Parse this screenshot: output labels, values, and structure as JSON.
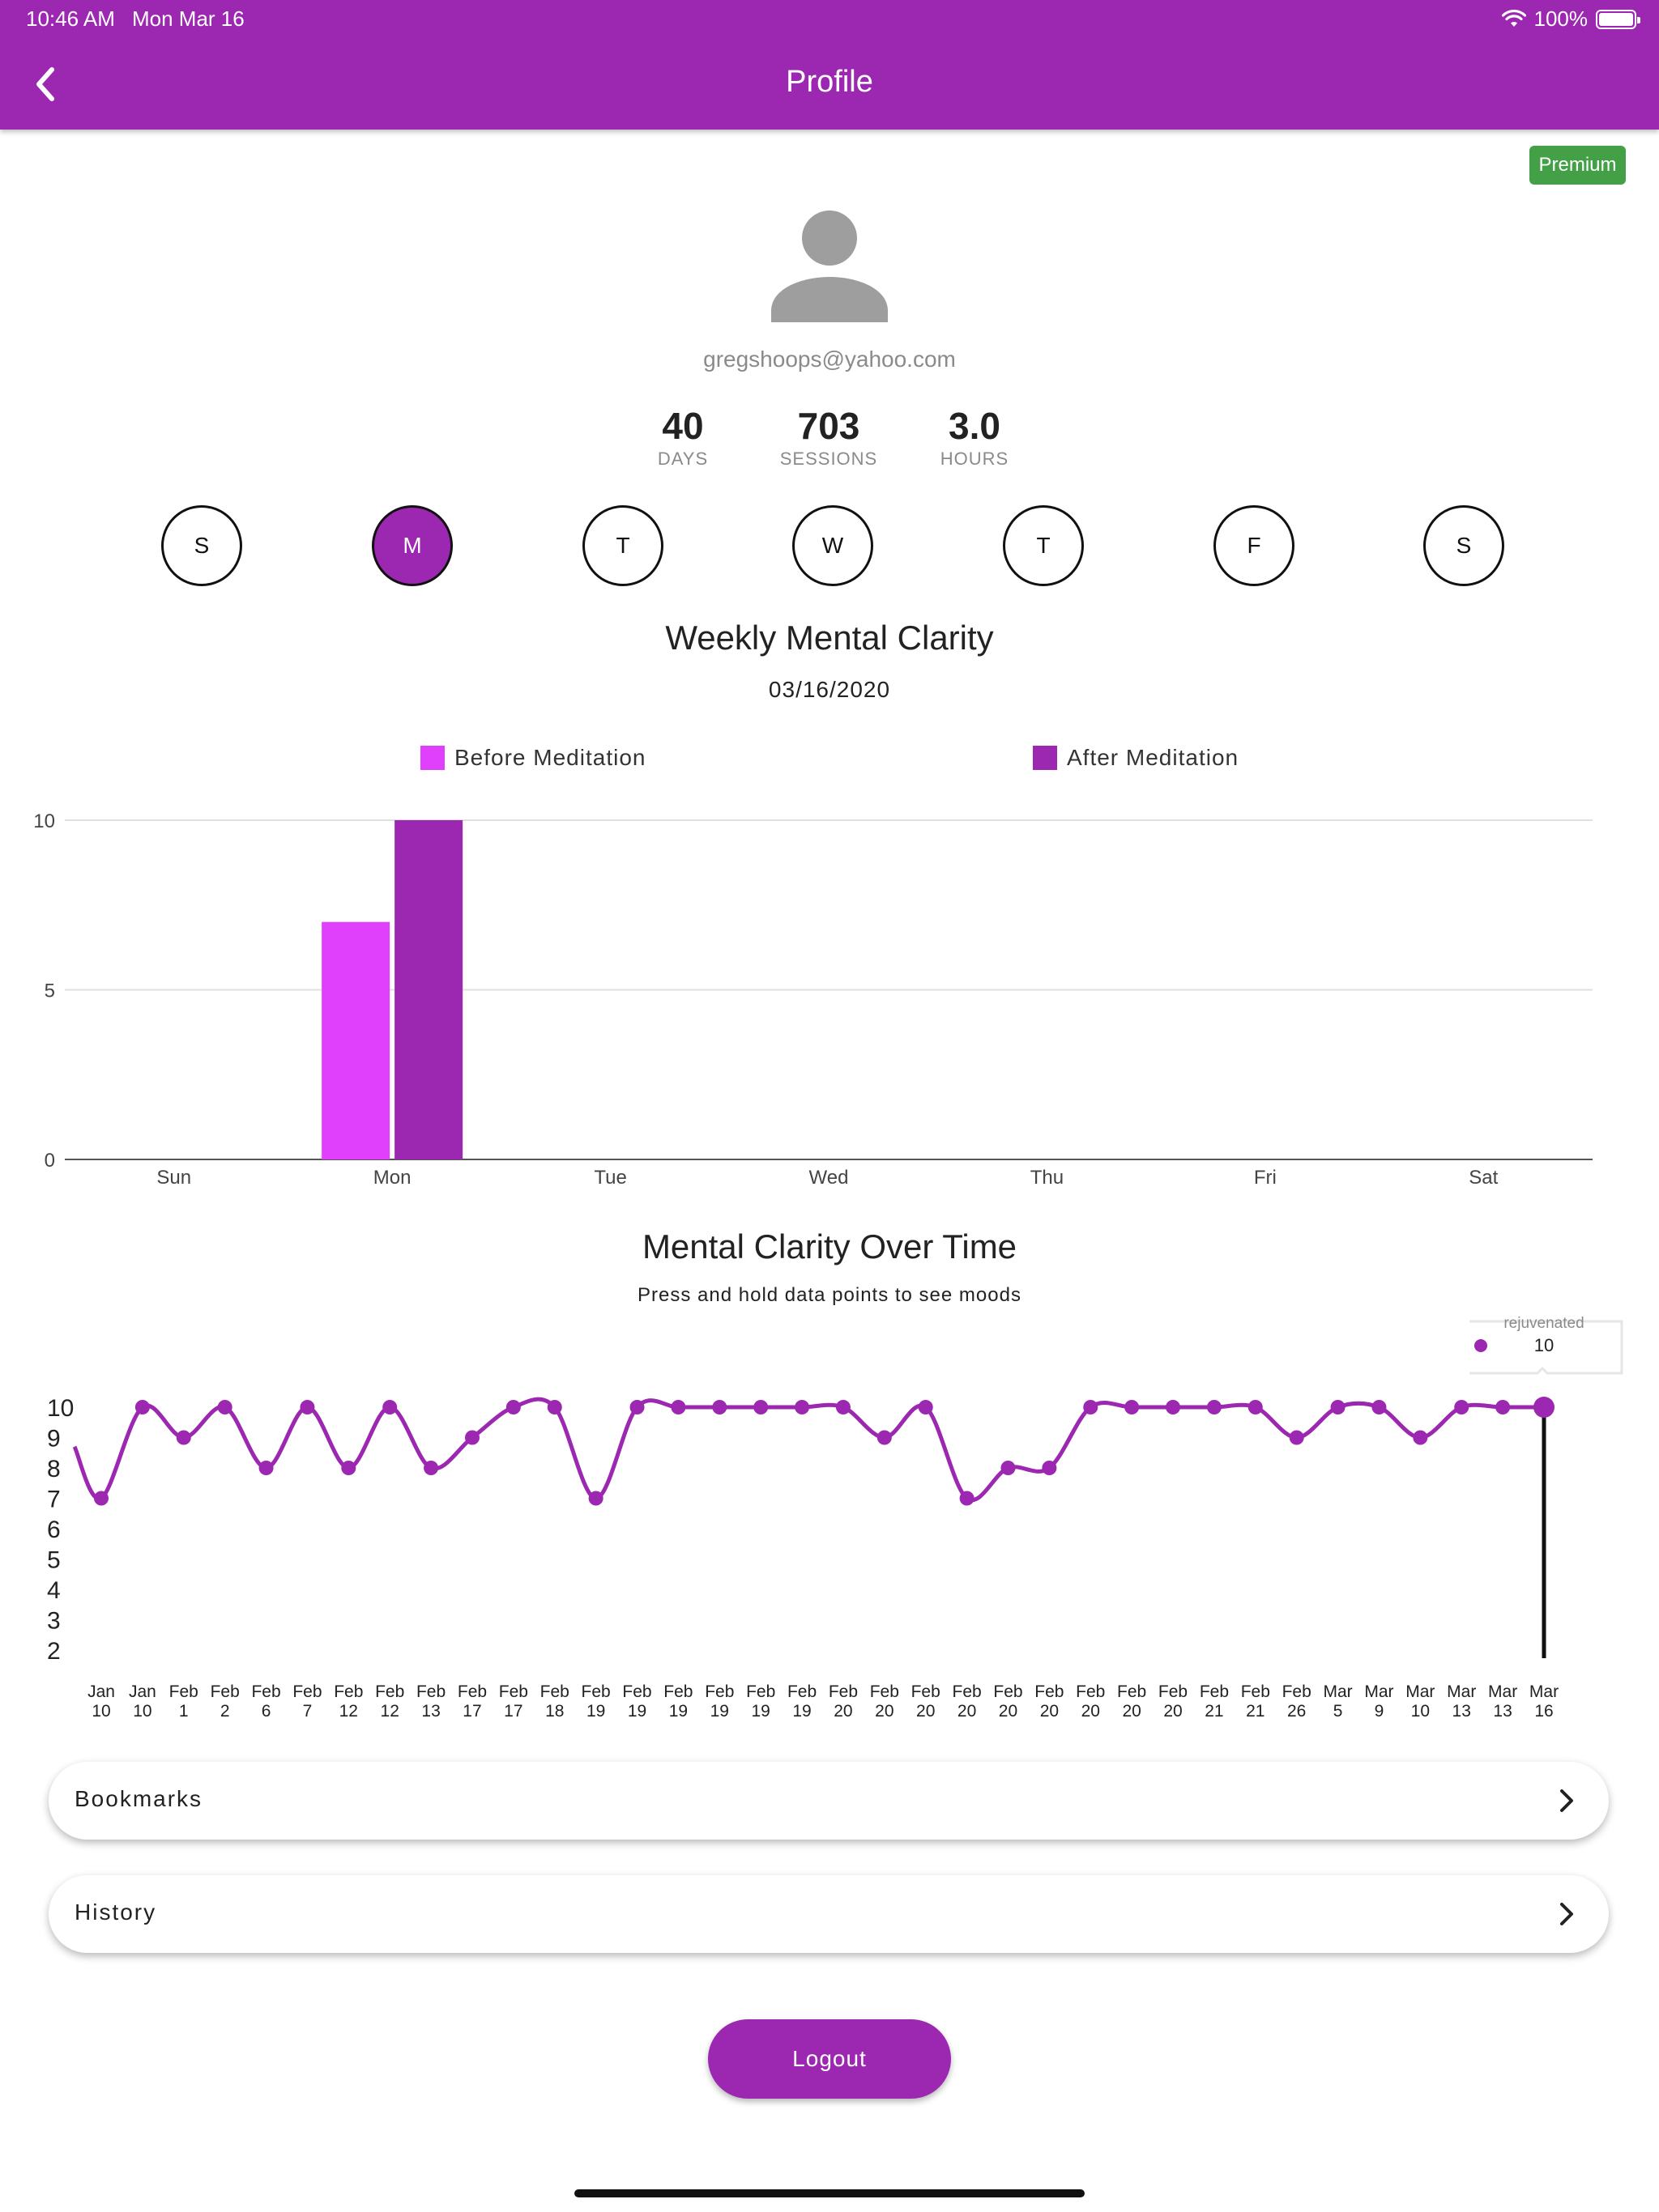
{
  "status_bar": {
    "time": "10:46 AM",
    "date": "Mon Mar 16",
    "battery": "100%"
  },
  "header": {
    "title": "Profile"
  },
  "badge": {
    "label": "Premium",
    "color": "#43a047"
  },
  "profile": {
    "email": "gregshoops@yahoo.com"
  },
  "stats": [
    {
      "value": "40",
      "label": "DAYS"
    },
    {
      "value": "703",
      "label": "SESSIONS"
    },
    {
      "value": "3.0",
      "label": "HOURS"
    }
  ],
  "weekdays": {
    "letters": [
      "S",
      "M",
      "T",
      "W",
      "T",
      "F",
      "S"
    ],
    "selected_index": 1
  },
  "colors": {
    "accent": "#9c27b0",
    "before": "#e040fb",
    "after": "#9c27b0"
  },
  "chart_data": [
    {
      "type": "bar",
      "title": "Weekly Mental Clarity",
      "subtitle": "03/16/2020",
      "categories": [
        "Sun",
        "Mon",
        "Tue",
        "Wed",
        "Thu",
        "Fri",
        "Sat"
      ],
      "series": [
        {
          "name": "Before Meditation",
          "values": [
            0,
            7,
            0,
            0,
            0,
            0,
            0
          ]
        },
        {
          "name": "After Meditation",
          "values": [
            0,
            10,
            0,
            0,
            0,
            0,
            0
          ]
        }
      ],
      "ylim": [
        0,
        10
      ],
      "yticks": [
        0,
        5,
        10
      ],
      "grid": true,
      "legend": "top"
    },
    {
      "type": "line",
      "title": "Mental Clarity Over Time",
      "subtitle": "Press and hold data points to see moods",
      "x": [
        [
          "Jan",
          "10"
        ],
        [
          "Jan",
          "10"
        ],
        [
          "Feb",
          "1"
        ],
        [
          "Feb",
          "2"
        ],
        [
          "Feb",
          "6"
        ],
        [
          "Feb",
          "7"
        ],
        [
          "Feb",
          "12"
        ],
        [
          "Feb",
          "12"
        ],
        [
          "Feb",
          "13"
        ],
        [
          "Feb",
          "17"
        ],
        [
          "Feb",
          "17"
        ],
        [
          "Feb",
          "18"
        ],
        [
          "Feb",
          "19"
        ],
        [
          "Feb",
          "19"
        ],
        [
          "Feb",
          "19"
        ],
        [
          "Feb",
          "19"
        ],
        [
          "Feb",
          "19"
        ],
        [
          "Feb",
          "19"
        ],
        [
          "Feb",
          "20"
        ],
        [
          "Feb",
          "20"
        ],
        [
          "Feb",
          "20"
        ],
        [
          "Feb",
          "20"
        ],
        [
          "Feb",
          "20"
        ],
        [
          "Feb",
          "20"
        ],
        [
          "Feb",
          "20"
        ],
        [
          "Feb",
          "20"
        ],
        [
          "Feb",
          "20"
        ],
        [
          "Feb",
          "21"
        ],
        [
          "Feb",
          "21"
        ],
        [
          "Feb",
          "26"
        ],
        [
          "Mar",
          "5"
        ],
        [
          "Mar",
          "9"
        ],
        [
          "Mar",
          "10"
        ],
        [
          "Mar",
          "13"
        ],
        [
          "Mar",
          "13"
        ],
        [
          "Mar",
          "16"
        ]
      ],
      "values": [
        7,
        10,
        9,
        10,
        8,
        10,
        8,
        10,
        8,
        9,
        10,
        10,
        7,
        10,
        10,
        10,
        10,
        10,
        10,
        9,
        10,
        7,
        8,
        8,
        10,
        10,
        10,
        10,
        10,
        9,
        10,
        10,
        9,
        10,
        10,
        10
      ],
      "yticks": [
        2,
        3,
        4,
        5,
        6,
        7,
        8,
        9,
        10
      ],
      "ylim": [
        2,
        10
      ],
      "tooltip": {
        "mood": "rejuvenated",
        "value": "10",
        "index": 35
      }
    }
  ],
  "nav": [
    {
      "label": "Bookmarks"
    },
    {
      "label": "History"
    }
  ],
  "logout": {
    "label": "Logout"
  }
}
